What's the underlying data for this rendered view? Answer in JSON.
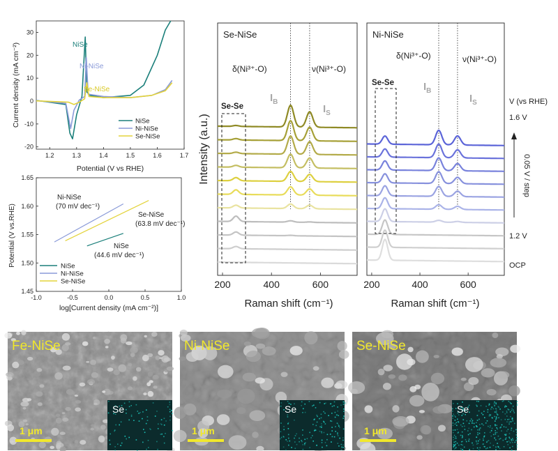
{
  "chart_data": [
    {
      "type": "line",
      "panel": "cv",
      "xlabel": "Potential (V vs RHE)",
      "ylabel": "Current density (mA cm⁻²)",
      "xlim": [
        1.15,
        1.7
      ],
      "ylim": [
        -21,
        35
      ],
      "xticks": [
        "1.2",
        "1.3",
        "1.4",
        "1.5",
        "1.6",
        "1.7"
      ],
      "yticks": [
        "-20",
        "-10",
        "0",
        "10",
        "20",
        "30"
      ],
      "legend": "bottom-right",
      "series": [
        {
          "name": "NiSe",
          "color": "#1a7f7a",
          "x": [
            1.15,
            1.26,
            1.275,
            1.285,
            1.3,
            1.32,
            1.332,
            1.338,
            1.35,
            1.4,
            1.5,
            1.55,
            1.6,
            1.63,
            1.65
          ],
          "y": [
            0.3,
            -1.5,
            -14,
            -16.5,
            -6,
            2,
            28,
            4,
            2.5,
            1.5,
            2.5,
            7,
            20,
            31,
            35
          ]
        },
        {
          "name": "Ni-NiSe",
          "color": "#8a9ad8",
          "x": [
            1.15,
            1.26,
            1.278,
            1.29,
            1.31,
            1.33,
            1.336,
            1.343,
            1.4,
            1.5,
            1.58,
            1.63,
            1.655
          ],
          "y": [
            0.2,
            -1,
            -12,
            -4,
            0.5,
            2,
            19,
            3,
            2,
            1.5,
            2.5,
            5,
            9
          ]
        },
        {
          "name": "Se-NiSe",
          "color": "#e3d33a",
          "x": [
            1.15,
            1.27,
            1.29,
            1.31,
            1.33,
            1.338,
            1.346,
            1.4,
            1.5,
            1.58,
            1.63,
            1.655
          ],
          "y": [
            0.1,
            -0.5,
            -1.5,
            -0.5,
            1,
            8,
            2,
            1.5,
            1.5,
            2.5,
            4.5,
            8
          ]
        }
      ],
      "annotations": [
        {
          "text": "NiSe",
          "color": "#1a7f7a"
        },
        {
          "text": "Ni-NiSe",
          "color": "#8a9ad8"
        },
        {
          "text": "Se-NiSe",
          "color": "#d9c824"
        }
      ]
    },
    {
      "type": "line",
      "panel": "tafel",
      "xlabel": "log[Current density (mA cm⁻²)]",
      "ylabel": "Potential (V vs.RHE)",
      "xlim": [
        -1.0,
        1.0
      ],
      "ylim": [
        1.45,
        1.65
      ],
      "xticks": [
        "-1.0",
        "-0.5",
        "0.0",
        "0.5",
        "1.0"
      ],
      "yticks": [
        "1.45",
        "1.50",
        "1.55",
        "1.60",
        "1.65"
      ],
      "legend": "bottom-left",
      "series": [
        {
          "name": "NiSe",
          "color": "#1a7f7a",
          "x": [
            -0.3,
            0.2
          ],
          "y": [
            1.53,
            1.552
          ]
        },
        {
          "name": "Ni-NiSe",
          "color": "#8a9ad8",
          "x": [
            -0.75,
            0.2
          ],
          "y": [
            1.537,
            1.604
          ]
        },
        {
          "name": "Se-NiSe",
          "color": "#e3d33a",
          "x": [
            -0.6,
            0.55
          ],
          "y": [
            1.539,
            1.61
          ]
        }
      ],
      "annotations": [
        {
          "line1": "Ni-NiSe",
          "line2": "(70 mV dec⁻¹)"
        },
        {
          "line1": "Se-NiSe",
          "line2": "(63.8 mV dec⁻¹)"
        },
        {
          "line1": "NiSe",
          "line2": "(44.6 mV dec⁻¹)"
        }
      ]
    },
    {
      "type": "line",
      "panel": "raman-se",
      "title": "Se-NiSe",
      "xlabel": "Raman shift (cm⁻¹)",
      "ylabel": "Intensity (a.u.)",
      "xlim": [
        180,
        750
      ],
      "xticks": [
        "200",
        "400",
        "600"
      ],
      "peaks": {
        "se_se": 255,
        "ib": 478,
        "is": 556
      },
      "labels": {
        "se_se": "Se-Se",
        "ib": "I",
        "ib_sub": "B",
        "is": "I",
        "is_sub": "S",
        "delta": "δ(Ni³⁺-O)",
        "nu": "ν(Ni³⁺-O)"
      },
      "traces": [
        {
          "color": "#dadada",
          "a_se": 0.0,
          "a_ib": 0.0,
          "a_is": 0.0
        },
        {
          "color": "#cecece",
          "a_se": 0.25,
          "a_ib": 0.0,
          "a_is": 0.0
        },
        {
          "color": "#c4c4c4",
          "a_se": 0.35,
          "a_ib": 0.05,
          "a_is": 0.0
        },
        {
          "color": "#bdbdbd",
          "a_se": 0.6,
          "a_ib": 0.15,
          "a_is": 0.05
        },
        {
          "color": "#e9e3a0",
          "a_se": 0.3,
          "a_ib": 0.5,
          "a_is": 0.4
        },
        {
          "color": "#e8dc5a",
          "a_se": 0.5,
          "a_ib": 0.9,
          "a_is": 0.7
        },
        {
          "color": "#ddd040",
          "a_se": 0.35,
          "a_ib": 1.1,
          "a_is": 0.8
        },
        {
          "color": "#c4be62",
          "a_se": 0.2,
          "a_ib": 1.5,
          "a_is": 1.1
        },
        {
          "color": "#b3ab49",
          "a_se": 0.15,
          "a_ib": 2.0,
          "a_is": 1.4
        },
        {
          "color": "#a6a037",
          "a_se": 0.15,
          "a_ib": 2.2,
          "a_is": 1.5
        },
        {
          "color": "#8f8a25",
          "a_se": 0.1,
          "a_ib": 2.4,
          "a_is": 1.7
        }
      ]
    },
    {
      "type": "line",
      "panel": "raman-ni",
      "title": "Ni-NiSe",
      "xlabel": "Raman shift (cm⁻¹)",
      "xlim": [
        180,
        750
      ],
      "xticks": [
        "200",
        "400",
        "600"
      ],
      "peaks": {
        "se_se": 255,
        "ib": 478,
        "is": 556
      },
      "labels": {
        "se_se": "Se-Se",
        "ib": "I",
        "ib_sub": "B",
        "is": "I",
        "is_sub": "S",
        "delta": "δ(Ni³⁺-O)",
        "nu": "ν(Ni³⁺-O)"
      },
      "voltage_labels": {
        "header": "V (vs RHE)",
        "top": "1.6 V",
        "bottom": "1.2 V",
        "ocp": "OCP",
        "step": "0.05 V / step"
      },
      "traces": [
        {
          "color": "#dedede",
          "a_se": 2.3,
          "a_ib": 0.0,
          "a_is": 0.0
        },
        {
          "color": "#cfcfcf",
          "a_se": 1.9,
          "a_ib": 0.0,
          "a_is": 0.0
        },
        {
          "color": "#c6c6c6",
          "a_se": 1.6,
          "a_ib": 0.0,
          "a_is": 0.0
        },
        {
          "color": "#cccfe6",
          "a_se": 1.4,
          "a_ib": 0.2,
          "a_is": 0.1
        },
        {
          "color": "#aab3e8",
          "a_se": 1.2,
          "a_ib": 0.5,
          "a_is": 0.35
        },
        {
          "color": "#9aa3e2",
          "a_se": 1.1,
          "a_ib": 1.1,
          "a_is": 0.6
        },
        {
          "color": "#8791dd",
          "a_se": 1.0,
          "a_ib": 1.3,
          "a_is": 0.7
        },
        {
          "color": "#7882dc",
          "a_se": 1.0,
          "a_ib": 1.4,
          "a_is": 0.8
        },
        {
          "color": "#6a72db",
          "a_se": 0.9,
          "a_ib": 1.5,
          "a_is": 0.9
        },
        {
          "color": "#5b64d8",
          "a_se": 0.9,
          "a_ib": 1.6,
          "a_is": 1.0
        }
      ]
    }
  ],
  "sem_panels": [
    {
      "label": "Fe-NiSe",
      "scale": "1 μm",
      "map": "Se",
      "density": 0.12
    },
    {
      "label": "Ni-NiSe",
      "scale": "1 μm",
      "map": "Se",
      "density": 0.22
    },
    {
      "label": "Se-NiSe",
      "scale": "1 μm",
      "map": "Se",
      "density": 0.45
    }
  ]
}
